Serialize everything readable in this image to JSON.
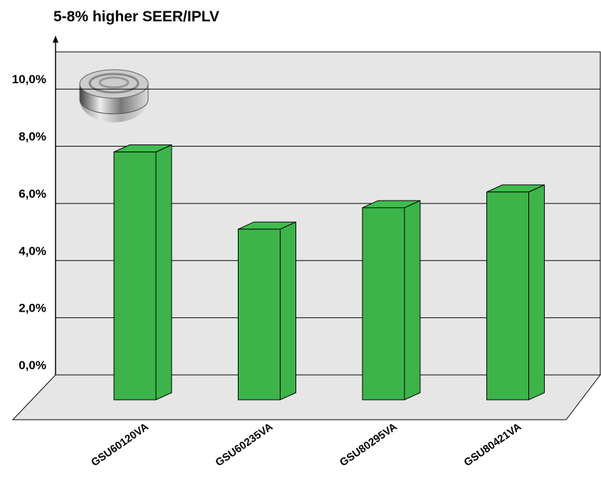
{
  "chart_data": {
    "type": "bar3d",
    "title": "5-8% higher SEER/IPLV",
    "categories": [
      "GSU60120VA",
      "GSU60235VA",
      "GSU80295VA",
      "GSU80421VA"
    ],
    "values": [
      7.8,
      5.1,
      5.85,
      6.4
    ],
    "color": "#3cb44a",
    "ylim": [
      0,
      11.3
    ],
    "yticks": [
      {
        "value": 0,
        "label": "0,0%"
      },
      {
        "value": 2,
        "label": "2,0%"
      },
      {
        "value": 4,
        "label": "4,0%"
      },
      {
        "value": 6,
        "label": "6,0%"
      },
      {
        "value": 8,
        "label": "8,0%"
      },
      {
        "value": 10,
        "label": "10,0%"
      }
    ],
    "grid": true
  }
}
